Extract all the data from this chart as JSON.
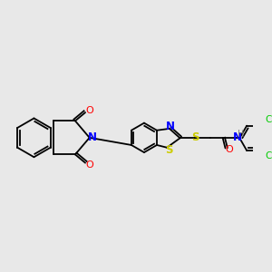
{
  "bg_color": "#e8e8e8",
  "bond_color": "#000000",
  "atom_colors": {
    "N": "#0000ff",
    "O": "#ff0000",
    "S": "#cccc00",
    "Cl": "#00cc00",
    "H": "#808080",
    "C": "#000000"
  },
  "figsize": [
    3.0,
    3.0
  ],
  "dpi": 100
}
